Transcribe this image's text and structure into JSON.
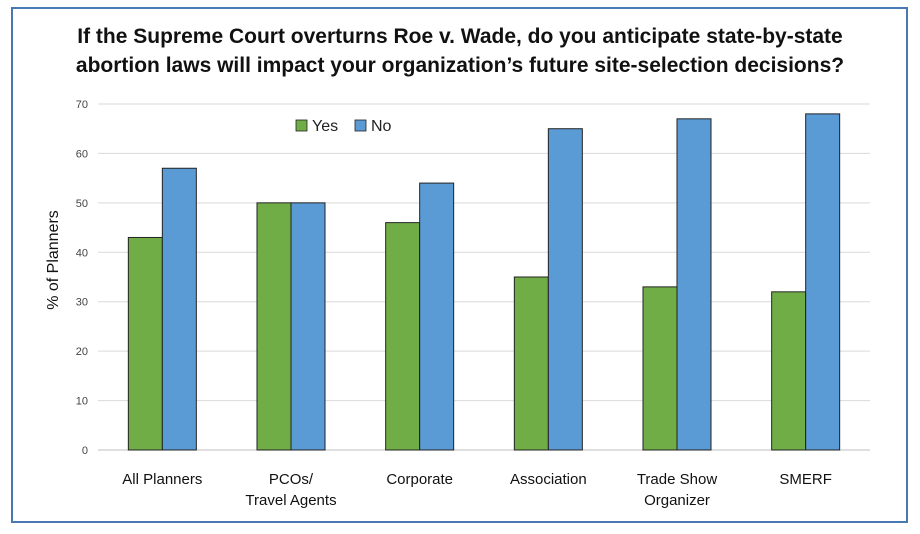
{
  "colors": {
    "yes": "#70ad47",
    "no": "#5b9bd5",
    "grid": "#d9d9d9",
    "border": "#4a78b5"
  },
  "chart_data": {
    "type": "bar",
    "title": [
      "If the Supreme Court overturns Roe v. Wade, do you anticipate state-by-state",
      "abortion laws will impact your organization’s future site-selection decisions?"
    ],
    "xlabel": "",
    "ylabel": "% of Planners",
    "ylim": [
      0,
      70
    ],
    "yticks": [
      0,
      10,
      20,
      30,
      40,
      50,
      60,
      70
    ],
    "grid": true,
    "legend_position": "top-left",
    "categories": [
      [
        "All Planners"
      ],
      [
        "PCOs/",
        "Travel Agents"
      ],
      [
        "Corporate"
      ],
      [
        "Association"
      ],
      [
        "Trade Show",
        "Organizer"
      ],
      [
        "SMERF"
      ]
    ],
    "series": [
      {
        "name": "Yes",
        "color": "#70ad47",
        "values": [
          43,
          50,
          46,
          35,
          33,
          32
        ]
      },
      {
        "name": "No",
        "color": "#5b9bd5",
        "values": [
          57,
          50,
          54,
          65,
          67,
          68
        ]
      }
    ]
  }
}
